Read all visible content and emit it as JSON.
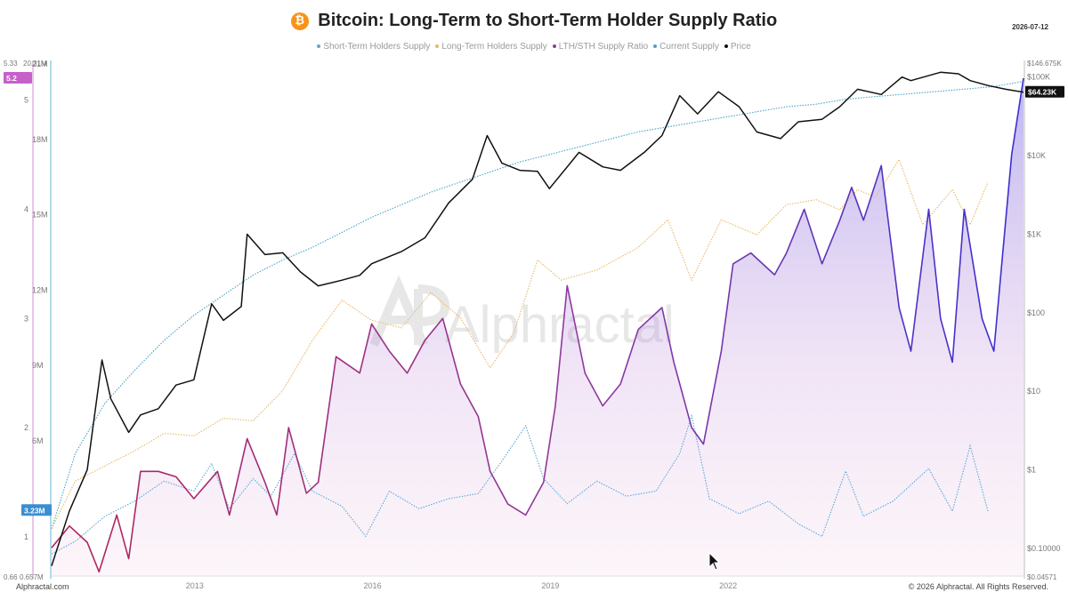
{
  "header": {
    "title": "Bitcoin: Long-Term to Short-Term Holder Supply Ratio",
    "date": "2026-07-12",
    "icon": "bitcoin-icon"
  },
  "footer": {
    "brand": "Alphractal.com",
    "copyright": "© 2026 Alphractal. All Rights Reserved."
  },
  "watermark": "Alphractal",
  "colors": {
    "sth": "#5aa9d6",
    "lth": "#e8b86a",
    "ratio_start": "#b0245a",
    "ratio_mid": "#8e3a9e",
    "ratio_end": "#3a2fd0",
    "current": "#4aa3c8",
    "price": "#111111",
    "ratio_axis_bg": "#c561c9",
    "sth_axis_bg": "#3b8fd0",
    "price_axis_bg": "#111111"
  },
  "chart_data": {
    "type": "line",
    "title": "Bitcoin: Long-Term to Short-Term Holder Supply Ratio",
    "x_ticks": [
      "2013",
      "2016",
      "2019",
      "2022"
    ],
    "legend_position": "top-center",
    "grid": false,
    "axes": {
      "left_supply": {
        "ticks": [
          "21M",
          "18M",
          "15M",
          "12M",
          "9M",
          "6M"
        ],
        "range": [
          0.657,
          21
        ],
        "units": "BTC",
        "top_label": "20.31M",
        "bottom_label": "0.657M",
        "current_label": "3.23M"
      },
      "left_ratio": {
        "ticks": [
          "5",
          "4",
          "3",
          "2",
          "1"
        ],
        "range": [
          0.65,
          5.33
        ],
        "top_label": "5.33",
        "bottom_label": "0.66",
        "current_label": "5.2"
      },
      "right_price": {
        "ticks": [
          "$100K",
          "$10K",
          "$1K",
          "$100",
          "$10",
          "$1",
          "$0.10000"
        ],
        "scale": "log",
        "top_label": "$146.675K",
        "bottom_label": "$0.04571",
        "current_label": "$64.23K"
      }
    },
    "series": [
      {
        "name": "Short-Term Holders Supply",
        "color": "#5aa9d6",
        "style": "dotted",
        "axis": "left_supply",
        "points": [
          [
            2010.6,
            1.5
          ],
          [
            2011.0,
            2.0
          ],
          [
            2011.5,
            3.0
          ],
          [
            2012.0,
            3.6
          ],
          [
            2012.5,
            4.4
          ],
          [
            2013.0,
            4.0
          ],
          [
            2013.3,
            5.1
          ],
          [
            2013.6,
            3.3
          ],
          [
            2014.0,
            4.5
          ],
          [
            2014.3,
            3.8
          ],
          [
            2014.7,
            5.5
          ],
          [
            2015.0,
            4.0
          ],
          [
            2015.5,
            3.4
          ],
          [
            2015.9,
            2.2
          ],
          [
            2016.3,
            4.0
          ],
          [
            2016.8,
            3.3
          ],
          [
            2017.3,
            3.7
          ],
          [
            2017.8,
            3.9
          ],
          [
            2018.2,
            5.2
          ],
          [
            2018.6,
            6.6
          ],
          [
            2018.9,
            4.5
          ],
          [
            2019.3,
            3.5
          ],
          [
            2019.8,
            4.4
          ],
          [
            2020.3,
            3.8
          ],
          [
            2020.8,
            4.0
          ],
          [
            2021.2,
            5.5
          ],
          [
            2021.4,
            7.0
          ],
          [
            2021.7,
            3.7
          ],
          [
            2022.2,
            3.1
          ],
          [
            2022.7,
            3.6
          ],
          [
            2023.2,
            2.7
          ],
          [
            2023.6,
            2.2
          ],
          [
            2024.0,
            4.8
          ],
          [
            2024.3,
            3.0
          ],
          [
            2024.8,
            3.6
          ],
          [
            2025.4,
            4.9
          ],
          [
            2025.8,
            3.2
          ],
          [
            2026.1,
            5.8
          ],
          [
            2026.4,
            3.2
          ]
        ]
      },
      {
        "name": "Long-Term Holders Supply",
        "color": "#e8b86a",
        "style": "dotted",
        "axis": "left_supply",
        "points": [
          [
            2010.6,
            2.5
          ],
          [
            2011.0,
            4.4
          ],
          [
            2011.5,
            5.0
          ],
          [
            2012.0,
            5.6
          ],
          [
            2012.5,
            6.3
          ],
          [
            2013.0,
            6.2
          ],
          [
            2013.5,
            6.9
          ],
          [
            2014.0,
            6.8
          ],
          [
            2014.5,
            8.0
          ],
          [
            2015.0,
            10.0
          ],
          [
            2015.5,
            11.6
          ],
          [
            2016.0,
            10.8
          ],
          [
            2016.5,
            10.5
          ],
          [
            2017.0,
            11.9
          ],
          [
            2017.5,
            10.9
          ],
          [
            2018.0,
            8.9
          ],
          [
            2018.4,
            10.3
          ],
          [
            2018.8,
            13.2
          ],
          [
            2019.2,
            12.4
          ],
          [
            2019.8,
            12.8
          ],
          [
            2020.5,
            13.7
          ],
          [
            2021.0,
            14.8
          ],
          [
            2021.4,
            12.4
          ],
          [
            2021.9,
            14.8
          ],
          [
            2022.5,
            14.2
          ],
          [
            2023.0,
            15.4
          ],
          [
            2023.5,
            15.6
          ],
          [
            2023.9,
            15.2
          ],
          [
            2024.2,
            16.0
          ],
          [
            2024.5,
            15.7
          ],
          [
            2024.9,
            17.2
          ],
          [
            2025.3,
            14.6
          ],
          [
            2025.8,
            16.0
          ],
          [
            2026.1,
            14.6
          ],
          [
            2026.4,
            16.3
          ]
        ]
      },
      {
        "name": "LTH/STH Supply Ratio",
        "color": "#8e3a9e",
        "style": "solid-filled",
        "axis": "left_ratio",
        "points": [
          [
            2010.6,
            0.9
          ],
          [
            2010.9,
            1.1
          ],
          [
            2011.2,
            0.95
          ],
          [
            2011.4,
            0.68
          ],
          [
            2011.7,
            1.2
          ],
          [
            2011.9,
            0.8
          ],
          [
            2012.1,
            1.6
          ],
          [
            2012.4,
            1.6
          ],
          [
            2012.7,
            1.55
          ],
          [
            2013.0,
            1.35
          ],
          [
            2013.4,
            1.6
          ],
          [
            2013.6,
            1.2
          ],
          [
            2013.9,
            1.9
          ],
          [
            2014.2,
            1.5
          ],
          [
            2014.4,
            1.2
          ],
          [
            2014.6,
            2.0
          ],
          [
            2014.9,
            1.4
          ],
          [
            2015.1,
            1.5
          ],
          [
            2015.4,
            2.65
          ],
          [
            2015.8,
            2.5
          ],
          [
            2016.0,
            2.95
          ],
          [
            2016.3,
            2.7
          ],
          [
            2016.6,
            2.5
          ],
          [
            2016.9,
            2.8
          ],
          [
            2017.2,
            3.0
          ],
          [
            2017.5,
            2.4
          ],
          [
            2017.8,
            2.1
          ],
          [
            2018.0,
            1.6
          ],
          [
            2018.3,
            1.3
          ],
          [
            2018.6,
            1.2
          ],
          [
            2018.9,
            1.5
          ],
          [
            2019.1,
            2.2
          ],
          [
            2019.3,
            3.3
          ],
          [
            2019.6,
            2.5
          ],
          [
            2019.9,
            2.2
          ],
          [
            2020.2,
            2.4
          ],
          [
            2020.5,
            2.9
          ],
          [
            2020.9,
            3.1
          ],
          [
            2021.1,
            2.6
          ],
          [
            2021.4,
            2.0
          ],
          [
            2021.6,
            1.85
          ],
          [
            2021.9,
            2.7
          ],
          [
            2022.1,
            3.5
          ],
          [
            2022.4,
            3.6
          ],
          [
            2022.8,
            3.4
          ],
          [
            2023.0,
            3.6
          ],
          [
            2023.3,
            4.0
          ],
          [
            2023.6,
            3.5
          ],
          [
            2023.9,
            3.9
          ],
          [
            2024.1,
            4.2
          ],
          [
            2024.3,
            3.9
          ],
          [
            2024.6,
            4.4
          ],
          [
            2024.9,
            3.1
          ],
          [
            2025.1,
            2.7
          ],
          [
            2025.4,
            4.0
          ],
          [
            2025.6,
            3.0
          ],
          [
            2025.8,
            2.6
          ],
          [
            2026.0,
            4.0
          ],
          [
            2026.3,
            3.0
          ],
          [
            2026.5,
            2.7
          ],
          [
            2026.8,
            4.5
          ],
          [
            2027.0,
            5.2
          ]
        ]
      },
      {
        "name": "Current Supply",
        "color": "#4aa3c8",
        "style": "dotted",
        "axis": "left_supply",
        "points": [
          [
            2010.6,
            2.5
          ],
          [
            2011.0,
            5.5
          ],
          [
            2011.5,
            7.5
          ],
          [
            2012.0,
            8.8
          ],
          [
            2012.5,
            10.0
          ],
          [
            2013.0,
            11.0
          ],
          [
            2013.5,
            11.8
          ],
          [
            2014.0,
            12.6
          ],
          [
            2014.5,
            13.2
          ],
          [
            2015.0,
            13.7
          ],
          [
            2015.5,
            14.3
          ],
          [
            2016.0,
            14.9
          ],
          [
            2016.5,
            15.4
          ],
          [
            2017.0,
            15.9
          ],
          [
            2017.5,
            16.3
          ],
          [
            2018.0,
            16.7
          ],
          [
            2018.5,
            17.1
          ],
          [
            2019.0,
            17.4
          ],
          [
            2019.5,
            17.7
          ],
          [
            2020.0,
            18.0
          ],
          [
            2020.5,
            18.3
          ],
          [
            2021.0,
            18.5
          ],
          [
            2021.5,
            18.7
          ],
          [
            2022.0,
            18.9
          ],
          [
            2022.5,
            19.1
          ],
          [
            2023.0,
            19.3
          ],
          [
            2023.5,
            19.4
          ],
          [
            2024.0,
            19.6
          ],
          [
            2024.5,
            19.7
          ],
          [
            2025.0,
            19.8
          ],
          [
            2025.5,
            19.9
          ],
          [
            2026.0,
            20.0
          ],
          [
            2026.5,
            20.1
          ],
          [
            2027.0,
            20.31
          ]
        ]
      },
      {
        "name": "Price",
        "color": "#111111",
        "style": "solid",
        "axis": "right_price",
        "points": [
          [
            2010.6,
            0.06
          ],
          [
            2010.9,
            0.3
          ],
          [
            2011.2,
            1.0
          ],
          [
            2011.45,
            25
          ],
          [
            2011.6,
            8
          ],
          [
            2011.9,
            3
          ],
          [
            2012.1,
            5
          ],
          [
            2012.4,
            6
          ],
          [
            2012.7,
            12
          ],
          [
            2013.0,
            14
          ],
          [
            2013.3,
            130
          ],
          [
            2013.5,
            80
          ],
          [
            2013.8,
            120
          ],
          [
            2013.9,
            1000
          ],
          [
            2014.2,
            550
          ],
          [
            2014.5,
            580
          ],
          [
            2014.8,
            330
          ],
          [
            2015.1,
            220
          ],
          [
            2015.5,
            260
          ],
          [
            2015.8,
            300
          ],
          [
            2016.0,
            420
          ],
          [
            2016.5,
            600
          ],
          [
            2016.9,
            900
          ],
          [
            2017.3,
            2500
          ],
          [
            2017.7,
            5000
          ],
          [
            2017.95,
            18000
          ],
          [
            2018.2,
            8000
          ],
          [
            2018.5,
            6500
          ],
          [
            2018.8,
            6300
          ],
          [
            2019.0,
            3800
          ],
          [
            2019.5,
            11000
          ],
          [
            2019.9,
            7200
          ],
          [
            2020.2,
            6500
          ],
          [
            2020.6,
            11000
          ],
          [
            2020.9,
            18000
          ],
          [
            2021.2,
            58000
          ],
          [
            2021.5,
            34000
          ],
          [
            2021.85,
            65000
          ],
          [
            2022.2,
            42000
          ],
          [
            2022.5,
            20000
          ],
          [
            2022.9,
            16500
          ],
          [
            2023.2,
            27000
          ],
          [
            2023.6,
            29000
          ],
          [
            2023.9,
            42000
          ],
          [
            2024.2,
            70000
          ],
          [
            2024.6,
            60000
          ],
          [
            2024.95,
            100000
          ],
          [
            2025.1,
            90000
          ],
          [
            2025.6,
            115000
          ],
          [
            2025.9,
            110000
          ],
          [
            2026.1,
            90000
          ],
          [
            2026.4,
            78000
          ],
          [
            2026.7,
            70000
          ],
          [
            2027.0,
            64230
          ]
        ]
      }
    ]
  }
}
